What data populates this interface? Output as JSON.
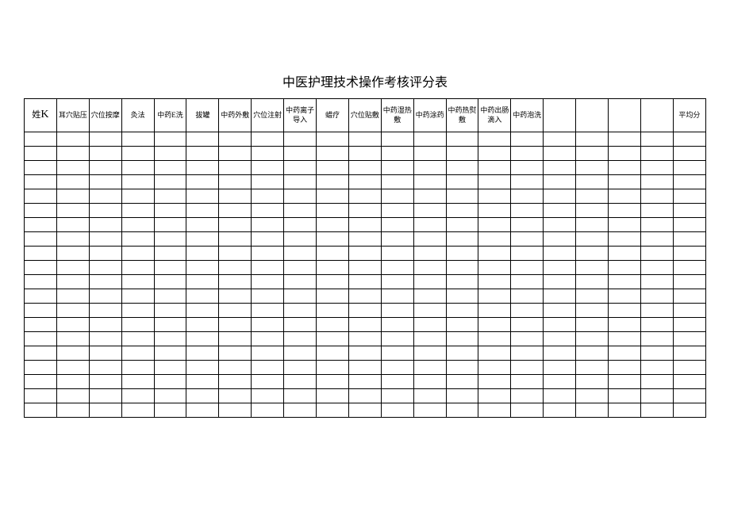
{
  "title": "中医护理技术操作考核评分表",
  "table": {
    "name_label": "姓",
    "name_big": "K",
    "columns": [
      "耳穴贴压",
      "穴位按摩",
      "灸法",
      "中药E洗",
      "拔罐",
      "中药外敷",
      "穴位注射",
      "中药离子导入",
      "蜡疗",
      "穴位贴敷",
      "中药湿热敷",
      "中药涂药",
      "中药热熨敷",
      "中药出肠滴入",
      "中药泡洗",
      "",
      "",
      "",
      "",
      "平均分"
    ],
    "num_data_rows": 20,
    "styling": {
      "border_color": "#000000",
      "background_color": "#ffffff",
      "text_color": "#000000",
      "title_fontsize": 16,
      "header_fontsize": 9,
      "header_row_height": 42,
      "data_row_height": 18,
      "num_columns": 21
    }
  }
}
